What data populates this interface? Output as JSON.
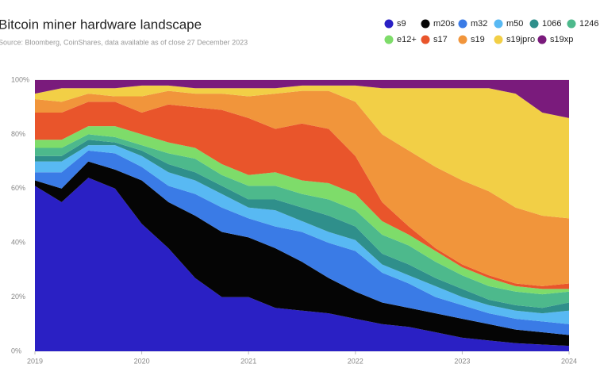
{
  "chart_data": {
    "type": "stacked_area",
    "title": "Bitcoin miner hardware landscape",
    "subtitle": "Source: Bloomberg, CoinShares, data available as of close 27 December 2023",
    "x": [
      2019,
      2019.25,
      2019.5,
      2019.75,
      2020,
      2020.25,
      2020.5,
      2020.75,
      2021,
      2021.25,
      2021.5,
      2021.75,
      2022,
      2022.25,
      2022.5,
      2022.75,
      2023,
      2023.25,
      2023.5,
      2023.75,
      2024
    ],
    "xlim": [
      2019,
      2024
    ],
    "xticks": [
      2019,
      2020,
      2021,
      2022,
      2023,
      2024
    ],
    "ylim": [
      0,
      100
    ],
    "yticks": [
      {
        "value": 0,
        "label": "0%"
      },
      {
        "value": 20,
        "label": "20%"
      },
      {
        "value": 40,
        "label": "40%"
      },
      {
        "value": 60,
        "label": "60%"
      },
      {
        "value": 80,
        "label": "80%"
      },
      {
        "value": 100,
        "label": "100%"
      }
    ],
    "grid": true,
    "legend": "top-right",
    "series": [
      {
        "name": "s9",
        "color": "#2a20c4",
        "values": [
          61,
          55,
          64,
          60,
          47,
          38,
          27,
          20,
          20,
          16,
          15,
          14,
          12,
          10,
          9,
          7,
          5,
          4,
          3,
          2.5,
          2
        ]
      },
      {
        "name": "m20s",
        "color": "#050505",
        "values": [
          2,
          5,
          6,
          7,
          16,
          17,
          23,
          24,
          22,
          22,
          18,
          13,
          10,
          8,
          7,
          7,
          7,
          6,
          5,
          4.5,
          4
        ]
      },
      {
        "name": "m32",
        "color": "#3a7be6",
        "values": [
          3,
          6,
          4,
          6,
          5,
          6,
          8,
          9,
          7,
          8,
          11,
          13,
          15,
          11,
          9,
          6,
          5,
          4,
          4,
          4,
          4
        ]
      },
      {
        "name": "m50",
        "color": "#58b9f3",
        "values": [
          4,
          4,
          2,
          3,
          4,
          5,
          5,
          5,
          4,
          6,
          4,
          4,
          4,
          3,
          3,
          4,
          3,
          3,
          3,
          3,
          5
        ]
      },
      {
        "name": "1066",
        "color": "#2f8f8b",
        "values": [
          2,
          2,
          2,
          1,
          2,
          3,
          3,
          3,
          3,
          4,
          5,
          6,
          5,
          4,
          4,
          3,
          3,
          2,
          2,
          2,
          3
        ]
      },
      {
        "name": "1246",
        "color": "#4db98c",
        "values": [
          3,
          3,
          2,
          2,
          2,
          4,
          5,
          4,
          5,
          5,
          5,
          6,
          6,
          7,
          7,
          6,
          5,
          5,
          5,
          5,
          4
        ]
      },
      {
        "name": "e12+",
        "color": "#7edc6a",
        "values": [
          3,
          3,
          3,
          4,
          4,
          4,
          4,
          4,
          4,
          5,
          5,
          6,
          6,
          5,
          4,
          4,
          3,
          3,
          2,
          2,
          1
        ]
      },
      {
        "name": "s17",
        "color": "#e9552b",
        "values": [
          10,
          10,
          9,
          9,
          8,
          14,
          15,
          20,
          21,
          16,
          21,
          20,
          14,
          7,
          3,
          1,
          1,
          1,
          1,
          1,
          2
        ]
      },
      {
        "name": "s19",
        "color": "#f1953b",
        "values": [
          5,
          4,
          3,
          2,
          6,
          5,
          5,
          6,
          8,
          13,
          12,
          14,
          20,
          25,
          28,
          30,
          31,
          31,
          28,
          26,
          24
        ]
      },
      {
        "name": "s19jpro",
        "color": "#f2cf46",
        "values": [
          2,
          5,
          2,
          3,
          4,
          2,
          2,
          2,
          3,
          2,
          2,
          2,
          6,
          17,
          23,
          29,
          34,
          38,
          42,
          38,
          37
        ]
      },
      {
        "name": "s19xp",
        "color": "#7a1b7c",
        "values": [
          5,
          3,
          3,
          3,
          2,
          2,
          3,
          3,
          3,
          3,
          2,
          2,
          2,
          3,
          3,
          3,
          3,
          3,
          5,
          12,
          14
        ]
      }
    ]
  }
}
